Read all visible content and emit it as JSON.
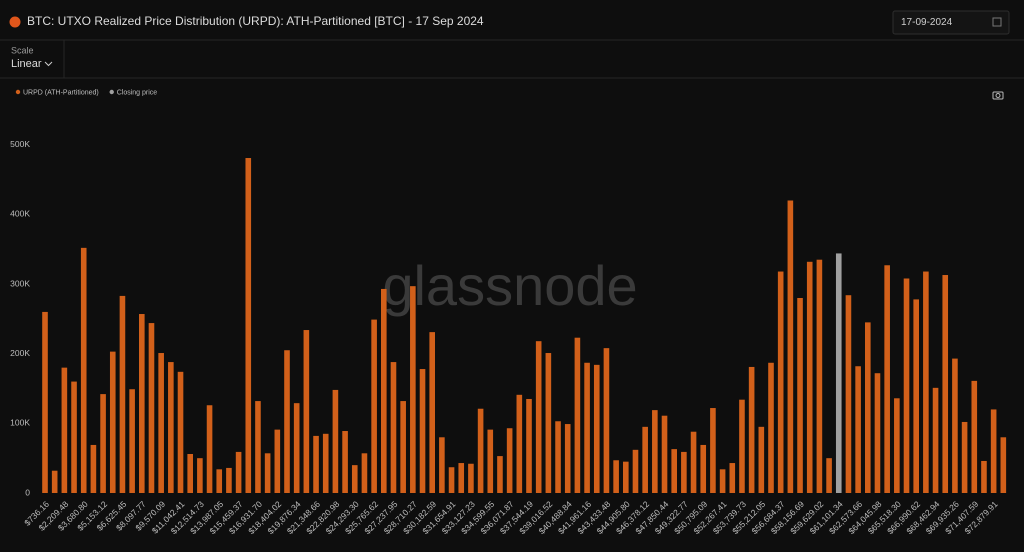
{
  "ui": {
    "scale_label": "Scale",
    "scale_value": "Linear",
    "date": "17-09-2024",
    "watermark": "glassnode"
  },
  "chart_data": {
    "type": "bar",
    "title": "BTC: UTXO Realized Price Distribution (URPD): ATH-Partitioned [BTC] - 17 Sep 2024",
    "categories": [
      "$736.16",
      null,
      "$2,209.48",
      null,
      "$3,680.80",
      null,
      "$5,153.12",
      null,
      "$6,625.45",
      null,
      "$8,097.77",
      null,
      "$9,570.09",
      null,
      "$11,042.41",
      null,
      "$12,514.73",
      null,
      "$13,987.05",
      null,
      "$15,459.37",
      null,
      "$16,931.70",
      null,
      "$18,404.02",
      null,
      "$19,876.34",
      null,
      "$21,348.66",
      null,
      "$22,820.98",
      null,
      "$24,293.30",
      null,
      "$25,765.62",
      null,
      "$27,237.95",
      null,
      "$28,710.27",
      null,
      "$30,182.59",
      null,
      "$31,654.91",
      null,
      "$33,127.23",
      null,
      "$34,599.55",
      null,
      "$36,071.87",
      null,
      "$37,544.19",
      null,
      "$39,016.52",
      null,
      "$40,488.84",
      null,
      "$41,961.16",
      null,
      "$43,433.48",
      null,
      "$44,905.80",
      null,
      "$46,378.12",
      null,
      "$47,850.44",
      null,
      "$49,322.77",
      null,
      "$50,795.09",
      null,
      "$52,267.41",
      null,
      "$53,739.73",
      null,
      "$55,212.05",
      null,
      "$56,684.37",
      null,
      "$58,156.69",
      null,
      "$59,629.02",
      null,
      "$61,101.34",
      null,
      "$62,573.66",
      null,
      "$64,045.98",
      null,
      "$65,518.30",
      null,
      "$66,990.62",
      null,
      "$68,462.94",
      null,
      "$69,935.26",
      null,
      "$71,407.59",
      null,
      "$72,879.91",
      null
    ],
    "series": [
      {
        "name": "URPD (ATH-Partitioned)",
        "color": "#d2601a",
        "values": [
          260000,
          32000,
          180000,
          160000,
          352000,
          69000,
          142000,
          203000,
          283000,
          149000,
          257000,
          244000,
          201000,
          188000,
          174000,
          56000,
          50000,
          126000,
          34000,
          36000,
          59000,
          481000,
          132000,
          57000,
          91000,
          205000,
          129000,
          234000,
          82000,
          85000,
          148000,
          89000,
          40000,
          57000,
          249000,
          293000,
          188000,
          132000,
          297000,
          178000,
          231000,
          80000,
          37000,
          43000,
          42000,
          121000,
          91000,
          53000,
          93000,
          141000,
          135000,
          218000,
          201000,
          103000,
          99000,
          223000,
          187000,
          184000,
          208000,
          47000,
          45000,
          62000,
          95000,
          119000,
          111000,
          63000,
          59000,
          88000,
          69000,
          122000,
          34000,
          43000,
          134000,
          181000,
          95000,
          187000,
          318000,
          420000,
          280000,
          332000,
          335000,
          50000,
          null,
          284000,
          182000,
          245000,
          172000,
          327000,
          136000,
          308000,
          278000,
          318000,
          151000,
          313000,
          193000,
          102000,
          161000,
          46000,
          120000,
          80000
        ]
      },
      {
        "name": "Closing price",
        "color": "#a0a0a0",
        "values": [
          null,
          null,
          null,
          null,
          null,
          null,
          null,
          null,
          null,
          null,
          null,
          null,
          null,
          null,
          null,
          null,
          null,
          null,
          null,
          null,
          null,
          null,
          null,
          null,
          null,
          null,
          null,
          null,
          null,
          null,
          null,
          null,
          null,
          null,
          null,
          null,
          null,
          null,
          null,
          null,
          null,
          null,
          null,
          null,
          null,
          null,
          null,
          null,
          null,
          null,
          null,
          null,
          null,
          null,
          null,
          null,
          null,
          null,
          null,
          null,
          null,
          null,
          null,
          null,
          null,
          null,
          null,
          null,
          null,
          null,
          null,
          null,
          null,
          null,
          null,
          null,
          null,
          null,
          null,
          null,
          null,
          null,
          344000,
          null,
          null,
          null,
          null,
          null,
          null,
          null,
          null,
          null,
          null,
          null,
          null,
          null,
          null,
          null,
          null,
          null
        ]
      }
    ],
    "ylim": [
      0,
      560000
    ],
    "yticks": [
      0,
      {
        "value": 100000,
        "label": "100K"
      },
      {
        "value": 200000,
        "label": "200K"
      },
      {
        "value": 300000,
        "label": "300K"
      },
      {
        "value": 400000,
        "label": "400K"
      },
      {
        "value": 500000,
        "label": "500K"
      }
    ]
  }
}
